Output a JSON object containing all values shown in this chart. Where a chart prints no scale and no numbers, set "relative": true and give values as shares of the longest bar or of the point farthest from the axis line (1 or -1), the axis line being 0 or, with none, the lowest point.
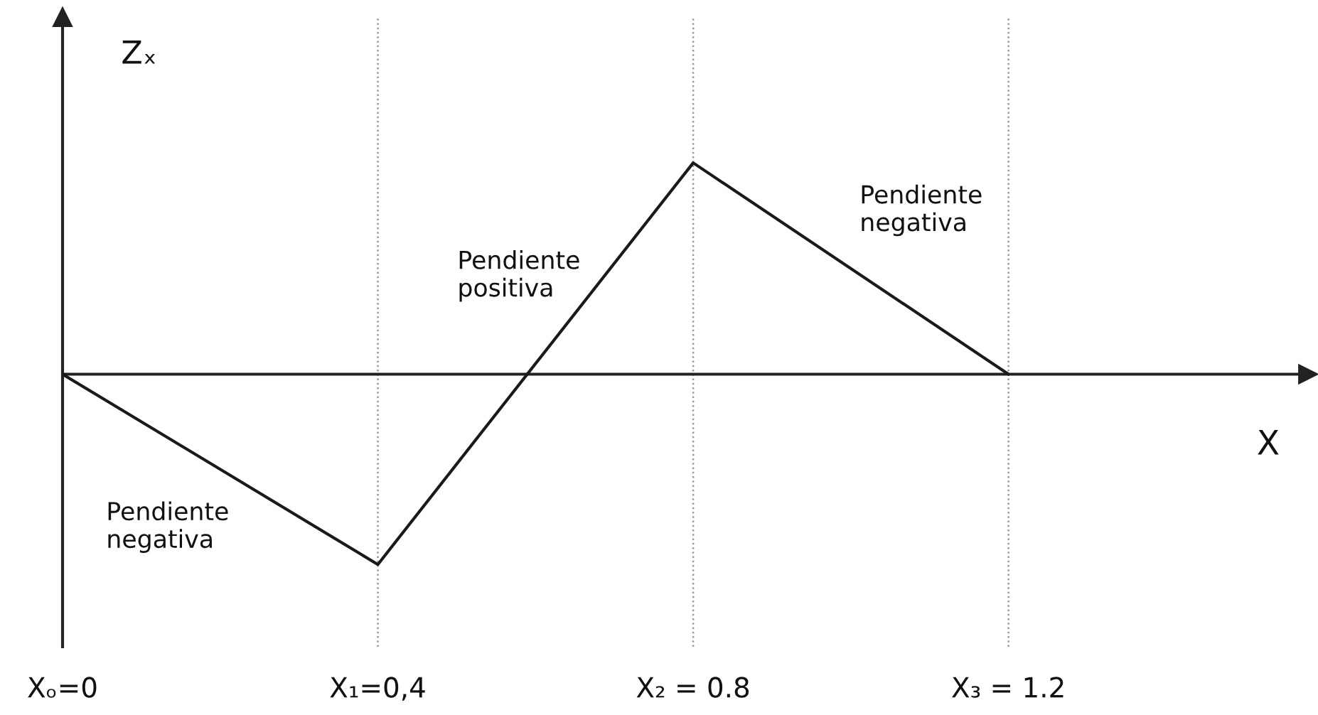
{
  "chart_data": {
    "type": "line",
    "relative": true,
    "xlabel": "X",
    "ylabel": "Zₓ",
    "x": [
      0,
      0.4,
      0.8,
      1.2
    ],
    "series": [
      {
        "color": "#1a1a1a",
        "values": [
          0,
          -0.9,
          1,
          0
        ]
      }
    ],
    "xlim": [
      0,
      1.58
    ],
    "xticks": [
      {
        "value": 0,
        "label": "Xₒ=0"
      },
      {
        "value": 0.4,
        "label": "X₁=0,4"
      },
      {
        "value": 0.8,
        "label": "X₂ = 0.8"
      },
      {
        "value": 1.2,
        "label": "X₃ = 1.2"
      }
    ],
    "grid": "x",
    "annotations": [
      "Pendiente\nnegativa",
      "Pendiente\npositiva",
      "Pendiente\nnegativa"
    ]
  }
}
